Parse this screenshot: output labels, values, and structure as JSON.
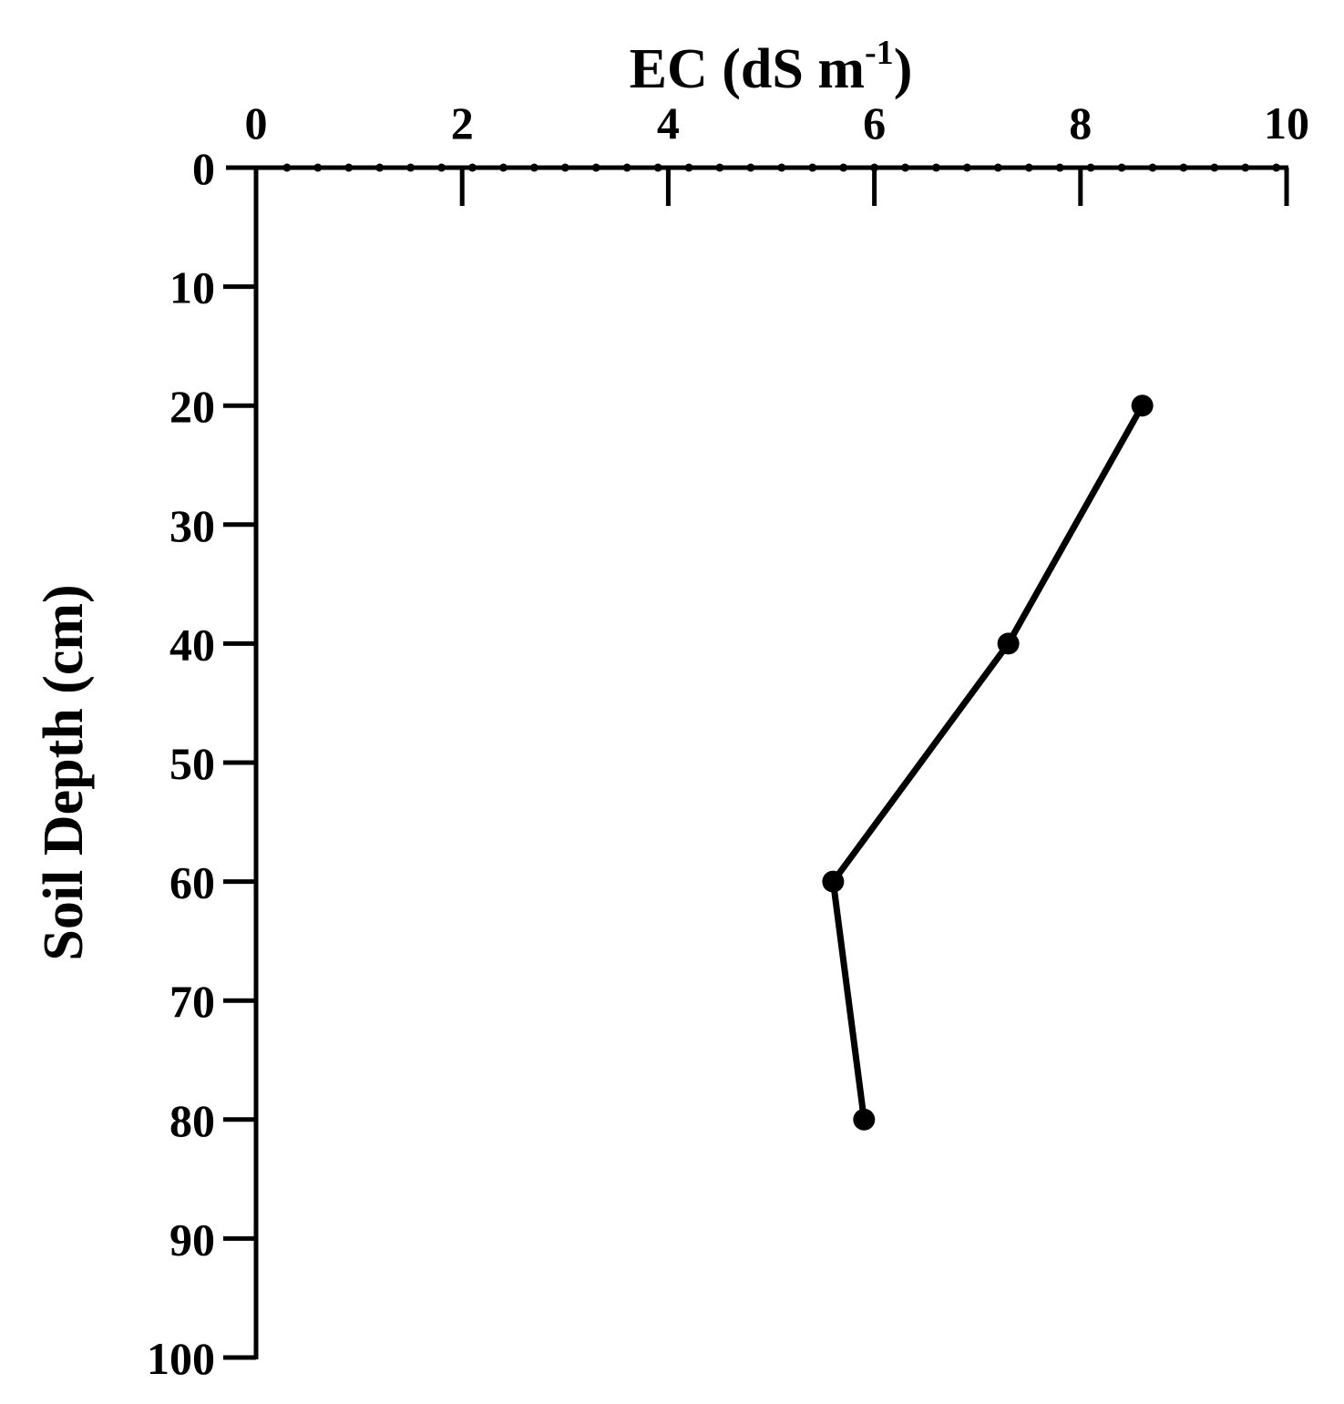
{
  "chart_data": {
    "type": "line",
    "orientation": "depth-profile",
    "x_axis": {
      "label_main": "EC (dS  m",
      "label_sup": "-1",
      "label_close": ")",
      "position": "top",
      "range": [
        0,
        10
      ],
      "ticks": [
        "0",
        "2",
        "4",
        "6",
        "8",
        "10"
      ],
      "minor_marker": "dot"
    },
    "y_axis": {
      "label": "Soil Depth (cm)",
      "range": [
        0,
        100
      ],
      "inverted": true,
      "ticks": [
        "0",
        "10",
        "20",
        "30",
        "40",
        "50",
        "60",
        "70",
        "80",
        "90",
        "100"
      ]
    },
    "grid": false,
    "legend": "none",
    "series": [
      {
        "marker": "circle",
        "color": "#000000",
        "points": [
          {
            "ec": 8.6,
            "depth": 20
          },
          {
            "ec": 7.3,
            "depth": 40
          },
          {
            "ec": 5.6,
            "depth": 60
          },
          {
            "ec": 5.9,
            "depth": 80
          }
        ]
      }
    ]
  }
}
